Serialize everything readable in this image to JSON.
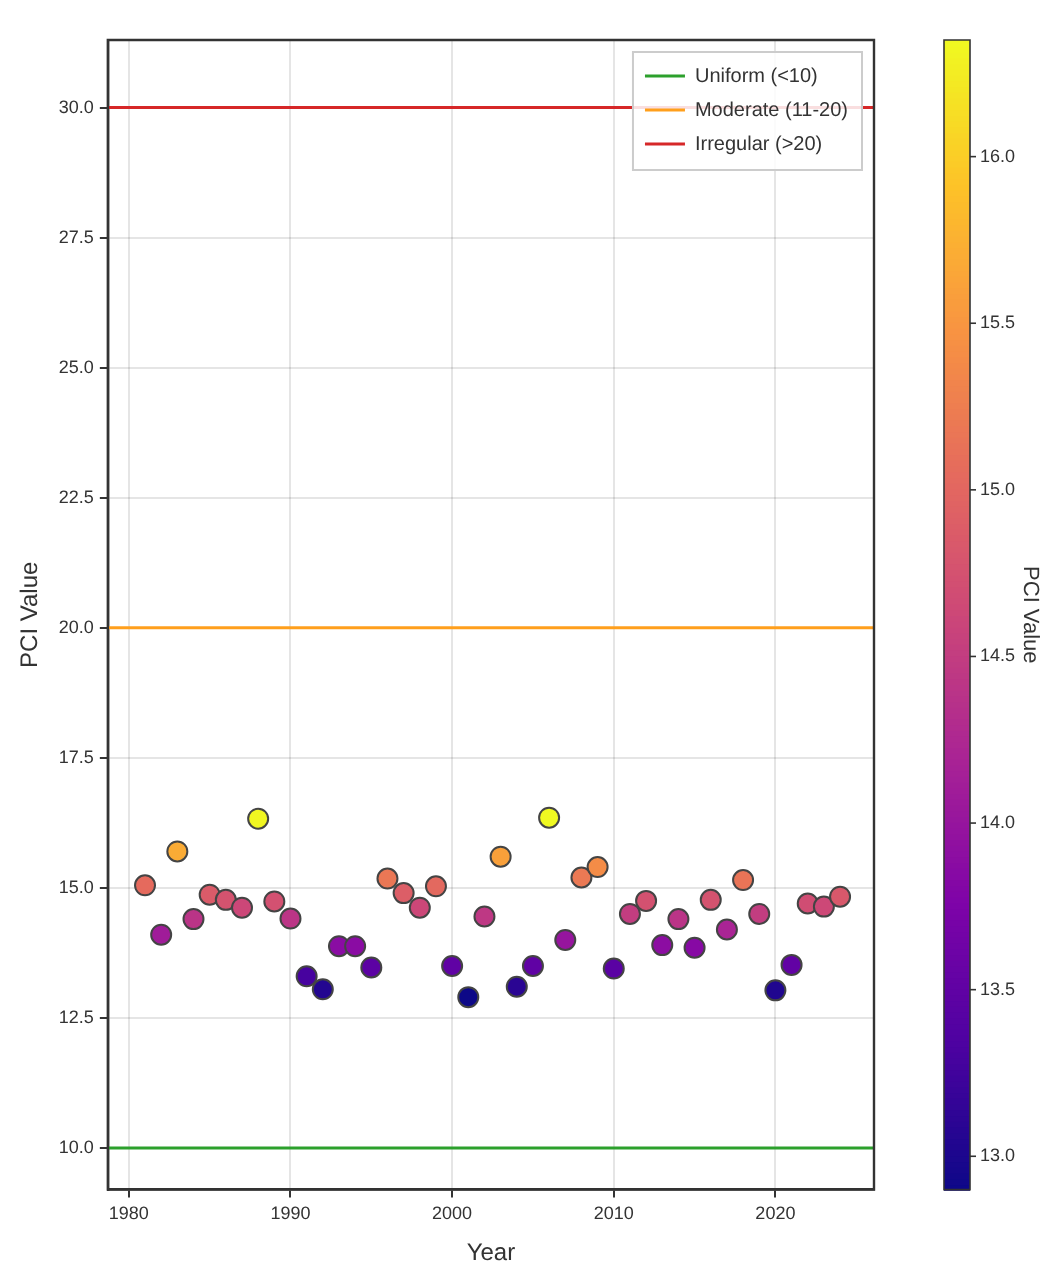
{
  "chart_data": {
    "type": "scatter",
    "xlabel": "Year",
    "ylabel": "PCI Value",
    "clabel": "PCI Value",
    "x": [
      1981,
      1982,
      1983,
      1984,
      1985,
      1986,
      1987,
      1988,
      1989,
      1990,
      1991,
      1992,
      1993,
      1994,
      1995,
      1996,
      1997,
      1998,
      1999,
      2000,
      2001,
      2002,
      2003,
      2004,
      2005,
      2006,
      2007,
      2008,
      2009,
      2010,
      2011,
      2012,
      2013,
      2014,
      2015,
      2016,
      2017,
      2018,
      2019,
      2020,
      2021,
      2022,
      2023,
      2024
    ],
    "values": [
      15.05,
      14.1,
      15.7,
      14.4,
      14.87,
      14.77,
      14.62,
      16.33,
      14.74,
      14.41,
      13.3,
      13.05,
      13.88,
      13.88,
      13.47,
      15.18,
      14.9,
      14.62,
      15.03,
      13.5,
      12.9,
      14.45,
      15.6,
      13.1,
      13.5,
      16.35,
      14.0,
      15.2,
      15.4,
      13.45,
      14.5,
      14.75,
      13.9,
      14.4,
      13.85,
      14.77,
      14.2,
      15.15,
      14.5,
      13.03,
      13.52,
      14.7,
      14.64,
      14.83
    ],
    "cvalues": [
      15.05,
      14.1,
      15.7,
      14.4,
      14.87,
      14.77,
      14.62,
      16.33,
      14.74,
      14.41,
      13.3,
      13.05,
      13.88,
      13.88,
      13.47,
      15.18,
      14.9,
      14.62,
      15.03,
      13.5,
      12.9,
      14.45,
      15.6,
      13.1,
      13.5,
      16.35,
      14.0,
      15.2,
      15.4,
      13.45,
      14.5,
      14.75,
      13.9,
      14.4,
      13.85,
      14.77,
      14.2,
      15.15,
      14.5,
      13.03,
      13.52,
      14.7,
      14.64,
      14.83
    ],
    "clim": [
      12.9,
      16.35
    ],
    "cticks": [
      {
        "value": 13,
        "label": "13.0"
      },
      {
        "value": 13.5,
        "label": "13.5"
      },
      {
        "value": 14,
        "label": "14.0"
      },
      {
        "value": 14.5,
        "label": "14.5"
      },
      {
        "value": 15,
        "label": "15.0"
      },
      {
        "value": 15.5,
        "label": "15.5"
      },
      {
        "value": 16,
        "label": "16.0"
      }
    ],
    "xlim": [
      1978.7,
      2026.1
    ],
    "xticks": [
      1980,
      1990,
      2000,
      2010,
      2020
    ],
    "ylim": [
      9.2,
      31.3
    ],
    "yticks": [
      {
        "value": 10,
        "label": "10.0"
      },
      {
        "value": 12.5,
        "label": "12.5"
      },
      {
        "value": 15,
        "label": "15.0"
      },
      {
        "value": 17.5,
        "label": "17.5"
      },
      {
        "value": 20,
        "label": "20.0"
      },
      {
        "value": 22.5,
        "label": "22.5"
      },
      {
        "value": 25,
        "label": "25.0"
      },
      {
        "value": 27.5,
        "label": "27.5"
      },
      {
        "value": 30,
        "label": "30.0"
      }
    ],
    "ref_lines": [
      {
        "axis": "y",
        "value": 10,
        "label": "Uniform (<10)",
        "color": "#2ca02c"
      },
      {
        "axis": "y",
        "value": 20,
        "label": "Moderate (11-20)",
        "color": "#ff9f1c"
      },
      {
        "axis": "y",
        "value": 30,
        "label": "Irregular (>20)",
        "color": "#d62728"
      }
    ],
    "grid": true,
    "legend": "top right",
    "marker": "circle"
  }
}
